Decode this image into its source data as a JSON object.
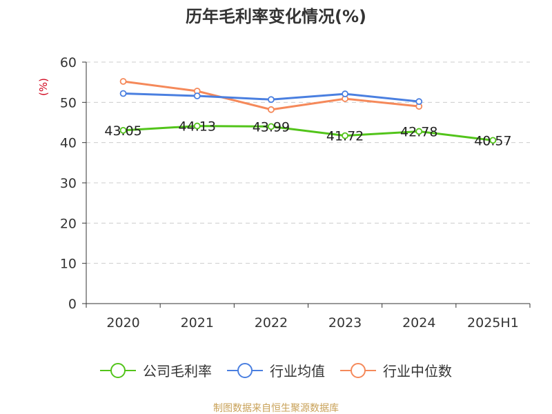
{
  "chart_data": {
    "type": "line",
    "title": "历年毛利率变化情况(%)",
    "ylabel": "(%)",
    "categories": [
      "2020",
      "2021",
      "2022",
      "2023",
      "2024",
      "2025H1"
    ],
    "ylim": [
      0,
      60
    ],
    "yticks": [
      0,
      10,
      20,
      30,
      40,
      50,
      60
    ],
    "grid": true,
    "legend_position": "bottom",
    "series": [
      {
        "name": "公司毛利率",
        "color": "#52c41a",
        "values": [
          43.05,
          44.13,
          43.99,
          41.72,
          42.78,
          40.57
        ],
        "labels": [
          "43.05",
          "44.13",
          "43.99",
          "41.72",
          "42.78",
          "40.57"
        ]
      },
      {
        "name": "行业均值",
        "color": "#4a7fe0",
        "values": [
          52.2,
          51.6,
          50.7,
          52.1,
          50.2,
          null
        ]
      },
      {
        "name": "行业中位数",
        "color": "#f5895a",
        "values": [
          55.2,
          52.8,
          48.2,
          50.9,
          49.0,
          null
        ]
      }
    ],
    "source": "制图数据来自恒生聚源数据库",
    "colors": {
      "axis": "#333333",
      "grid": "#cccccc",
      "unit": "#d0021b",
      "source": "#c8a158"
    }
  }
}
